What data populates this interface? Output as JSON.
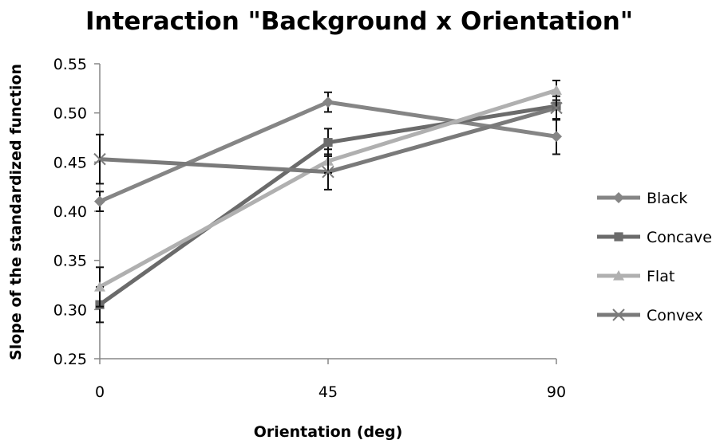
{
  "chart_data": {
    "type": "line",
    "title": "Interaction \"Background x Orientation\"",
    "xlabel": "Orientation (deg)",
    "ylabel": "Slope of the standardized function",
    "categories": [
      "0",
      "45",
      "90"
    ],
    "y_ticks": [
      "0.25",
      "0.30",
      "0.35",
      "0.40",
      "0.45",
      "0.50",
      "0.55"
    ],
    "ylim": [
      0.25,
      0.55
    ],
    "grid": false,
    "legend_position": "right",
    "series": [
      {
        "name": "Black",
        "marker": "diamond",
        "color": "#858585",
        "values": [
          0.41,
          0.511,
          0.476
        ],
        "errors": [
          0.01,
          0.01,
          0.018
        ]
      },
      {
        "name": "Concave",
        "marker": "square",
        "color": "#6b6b6b",
        "values": [
          0.305,
          0.47,
          0.507
        ],
        "errors": [
          0.018,
          0.014,
          0.014
        ]
      },
      {
        "name": "Flat",
        "marker": "triangle",
        "color": "#b0b0b0",
        "values": [
          0.323,
          0.451,
          0.523
        ],
        "errors": [
          0.02,
          0.012,
          0.01
        ]
      },
      {
        "name": "Convex",
        "marker": "x",
        "color": "#7a7a7a",
        "values": [
          0.453,
          0.44,
          0.505
        ],
        "errors": [
          0.025,
          0.018,
          0.012
        ]
      }
    ]
  }
}
